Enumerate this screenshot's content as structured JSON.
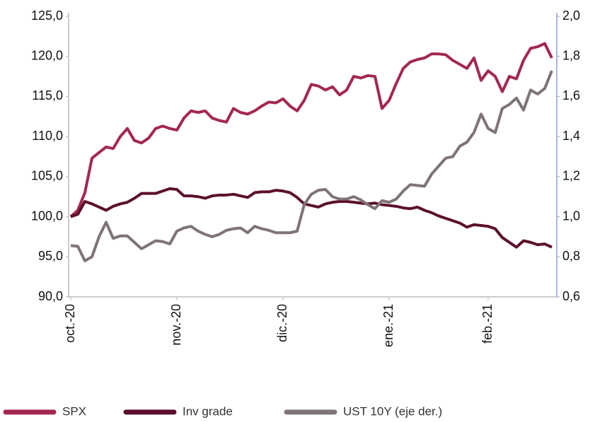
{
  "chart_data": {
    "type": "line",
    "categories": [
      "oct.-20",
      null,
      null,
      null,
      null,
      null,
      null,
      null,
      null,
      null,
      null,
      null,
      null,
      null,
      null,
      "nov.-20",
      null,
      null,
      null,
      null,
      null,
      null,
      null,
      null,
      null,
      null,
      null,
      null,
      null,
      null,
      "dic.-20",
      null,
      null,
      null,
      null,
      null,
      null,
      null,
      null,
      null,
      null,
      null,
      null,
      null,
      null,
      "ene.-21",
      null,
      null,
      null,
      null,
      null,
      null,
      null,
      null,
      null,
      null,
      null,
      null,
      null,
      "feb.-21",
      null,
      null,
      null,
      null,
      null,
      null,
      null,
      null,
      null
    ],
    "series": [
      {
        "name": "SPX",
        "color": "#a3284f",
        "axis": "y",
        "values": [
          100.0,
          100.8,
          103,
          107.3,
          108,
          108.7,
          108.5,
          110,
          111,
          109.5,
          109.2,
          109.8,
          111,
          111.3,
          111,
          110.8,
          112.3,
          113.2,
          113,
          113.2,
          112.3,
          112,
          111.8,
          113.5,
          113,
          112.8,
          113.2,
          113.8,
          114.3,
          114.2,
          114.7,
          113.8,
          113.2,
          114.5,
          116.5,
          116.3,
          115.8,
          116.2,
          115.2,
          115.8,
          117.5,
          117.3,
          117.6,
          117.5,
          113.5,
          114.5,
          116.6,
          118.5,
          119.3,
          119.6,
          119.8,
          120.3,
          120.3,
          120.2,
          119.5,
          119,
          118.5,
          119.8,
          117,
          118.2,
          117.5,
          115.6,
          117.5,
          117.2,
          119.5,
          121,
          121.2,
          121.6,
          119.8
        ]
      },
      {
        "name": "Inv grade",
        "color": "#5c0f2e",
        "axis": "y",
        "values": [
          100.0,
          100.3,
          101.9,
          101.6,
          101.2,
          100.8,
          101.3,
          101.6,
          101.8,
          102.3,
          102.9,
          102.9,
          102.9,
          103.2,
          103.5,
          103.4,
          102.6,
          102.6,
          102.5,
          102.3,
          102.6,
          102.7,
          102.7,
          102.8,
          102.6,
          102.4,
          103,
          103.1,
          103.1,
          103.3,
          103.2,
          103,
          102.4,
          101.6,
          101.4,
          101.2,
          101.6,
          101.8,
          101.9,
          101.9,
          101.8,
          101.7,
          101.6,
          101.7,
          101.5,
          101.4,
          101.3,
          101.1,
          101.0,
          101.2,
          100.8,
          100.5,
          100.1,
          99.8,
          99.5,
          99.2,
          98.7,
          99,
          98.9,
          98.8,
          98.5,
          97.4,
          96.8,
          96.2,
          97,
          96.8,
          96.5,
          96.6,
          96.2
        ]
      },
      {
        "name": "UST 10Y (eje der.)",
        "color": "#7f7475",
        "axis": "y2",
        "values": [
          0.856,
          0.852,
          0.78,
          0.8,
          0.9,
          0.972,
          0.892,
          0.904,
          0.904,
          0.872,
          0.84,
          0.86,
          0.88,
          0.876,
          0.864,
          0.928,
          0.944,
          0.952,
          0.928,
          0.912,
          0.9,
          0.912,
          0.932,
          0.94,
          0.944,
          0.92,
          0.952,
          0.94,
          0.932,
          0.92,
          0.92,
          0.92,
          0.928,
          1.06,
          1.112,
          1.132,
          1.136,
          1.1,
          1.088,
          1.088,
          1.1,
          1.084,
          1.06,
          1.04,
          1.08,
          1.072,
          1.088,
          1.128,
          1.16,
          1.156,
          1.152,
          1.212,
          1.252,
          1.292,
          1.3,
          1.352,
          1.372,
          1.42,
          1.512,
          1.44,
          1.42,
          1.54,
          1.56,
          1.592,
          1.532,
          1.632,
          1.612,
          1.64,
          1.728
        ]
      }
    ],
    "ylim": [
      90,
      125
    ],
    "yticks": [
      {
        "value": 90,
        "label": "90,0"
      },
      {
        "value": 95,
        "label": "95,0"
      },
      {
        "value": 100,
        "label": "100,0"
      },
      {
        "value": 105,
        "label": "105,0"
      },
      {
        "value": 110,
        "label": "110,0"
      },
      {
        "value": 115,
        "label": "115,0"
      },
      {
        "value": 120,
        "label": "120,0"
      },
      {
        "value": 125,
        "label": "125,0"
      }
    ],
    "y2lim": [
      0.6,
      2.0
    ],
    "y2ticks": [
      {
        "value": 0.6,
        "label": "0,6"
      },
      {
        "value": 0.8,
        "label": "0,8"
      },
      {
        "value": 1.0,
        "label": "1,0"
      },
      {
        "value": 1.2,
        "label": "1,2"
      },
      {
        "value": 1.4,
        "label": "1,4"
      },
      {
        "value": 1.6,
        "label": "1,6"
      },
      {
        "value": 1.8,
        "label": "1,8"
      },
      {
        "value": 2.0,
        "label": "2,0"
      }
    ],
    "grid": false,
    "legend": "bottom"
  }
}
